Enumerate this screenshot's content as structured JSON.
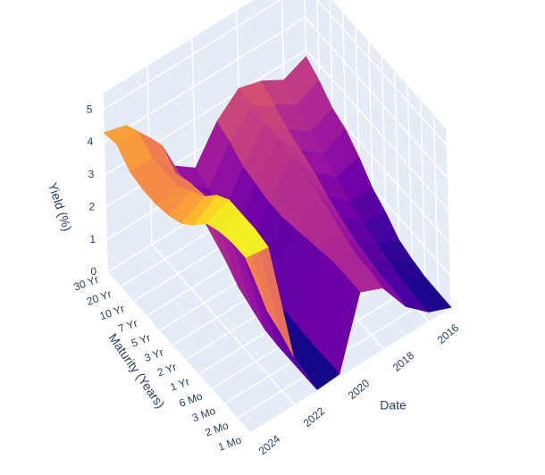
{
  "chart_data": {
    "type": "surface",
    "x_label": "Date",
    "y_label": "Maturity (Years)",
    "z_label": "Yield (%)",
    "x": [
      2015,
      2016,
      2017,
      2018,
      2019,
      2020,
      2021,
      2022,
      2023,
      2024
    ],
    "y": [
      "1 Mo",
      "2 Mo",
      "3 Mo",
      "6 Mo",
      "1 Yr",
      "2 Yr",
      "3 Yr",
      "5 Yr",
      "7 Yr",
      "10 Yr",
      "20 Yr",
      "30 Yr"
    ],
    "z": [
      [
        0.02,
        0.03,
        0.05,
        0.15,
        0.3,
        0.7,
        1.0,
        1.5,
        1.9,
        2.1,
        2.5,
        2.8
      ],
      [
        0.3,
        0.3,
        0.35,
        0.5,
        0.6,
        0.8,
        1.0,
        1.3,
        1.6,
        1.8,
        2.2,
        2.5
      ],
      [
        0.9,
        1.0,
        1.0,
        1.1,
        1.2,
        1.4,
        1.6,
        1.9,
        2.1,
        2.3,
        2.6,
        2.9
      ],
      [
        1.9,
        2.0,
        2.0,
        2.2,
        2.4,
        2.6,
        2.7,
        2.8,
        2.9,
        2.9,
        3.0,
        3.1
      ],
      [
        2.2,
        2.2,
        2.2,
        2.1,
        2.0,
        1.9,
        1.8,
        1.8,
        1.9,
        2.0,
        2.3,
        2.5
      ],
      [
        0.1,
        0.1,
        0.1,
        0.1,
        0.15,
        0.2,
        0.25,
        0.4,
        0.6,
        0.9,
        1.3,
        1.5
      ],
      [
        0.05,
        0.05,
        0.05,
        0.05,
        0.1,
        0.3,
        0.5,
        0.9,
        1.2,
        1.5,
        1.9,
        2.0
      ],
      [
        1.5,
        1.8,
        2.0,
        2.6,
        3.1,
        3.4,
        3.5,
        3.4,
        3.3,
        3.1,
        3.5,
        3.3
      ],
      [
        5.3,
        5.4,
        5.4,
        5.4,
        5.1,
        4.6,
        4.3,
        4.0,
        4.0,
        4.0,
        4.3,
        4.1
      ],
      [
        5.4,
        5.4,
        5.3,
        5.1,
        4.6,
        4.2,
        4.0,
        3.9,
        3.9,
        4.0,
        4.4,
        4.3
      ]
    ],
    "xlim": [
      2015,
      2024
    ],
    "xticks": [
      2016,
      2018,
      2020,
      2022,
      2024
    ],
    "zlim": [
      0,
      5.5
    ],
    "zticks": [
      0,
      1,
      2,
      3,
      4,
      5
    ],
    "colorscale": [
      "#0d0887",
      "#46039f",
      "#7201a8",
      "#9c179e",
      "#bd3786",
      "#d8576b",
      "#ed7953",
      "#fb9f3a",
      "#fdca26",
      "#f0f921"
    ],
    "pane_color": "#e5ecf6",
    "grid": true
  }
}
